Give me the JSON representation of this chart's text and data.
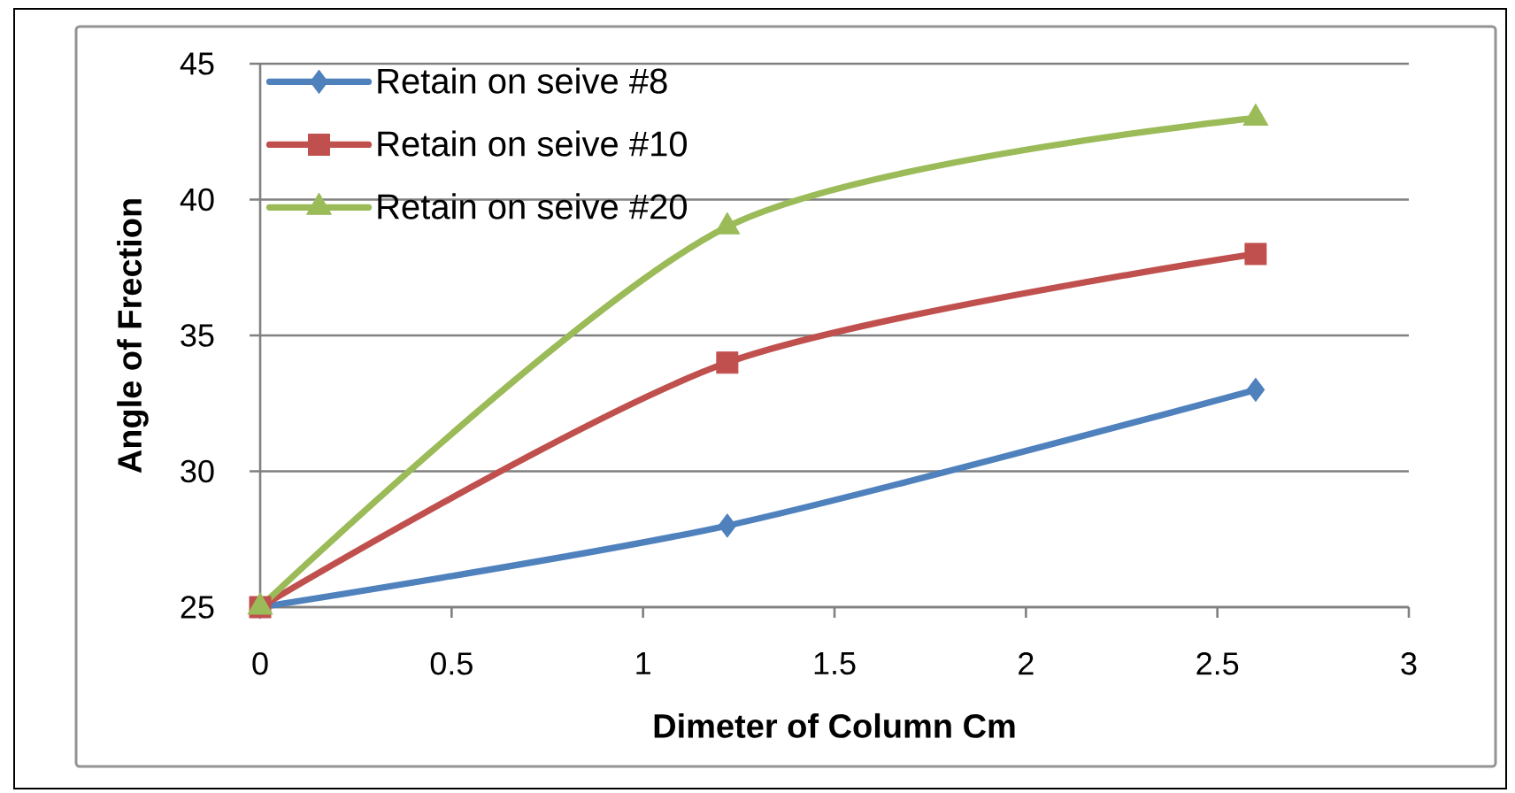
{
  "chart_data": {
    "type": "line",
    "xlabel": "Dimeter of Column Cm",
    "ylabel": "Angle of Frection",
    "x": [
      0,
      1.22,
      2.6
    ],
    "xlim": [
      0,
      3
    ],
    "xticks": [
      0,
      0.5,
      1,
      1.5,
      2,
      2.5,
      3
    ],
    "ylim": [
      25,
      45
    ],
    "yticks": [
      25,
      30,
      35,
      40,
      45
    ],
    "grid": "y",
    "legend": "top left",
    "line_style": "solid",
    "series": [
      {
        "name": "Retain on seive #8",
        "color": "#4f81bd",
        "marker": "diamond",
        "values": [
          25,
          28,
          33
        ]
      },
      {
        "name": "Retain on seive #10",
        "color": "#c0504d",
        "marker": "square",
        "values": [
          25,
          34,
          38
        ]
      },
      {
        "name": "Retain on seive #20",
        "color": "#9bbb59",
        "marker": "triangle",
        "values": [
          25,
          39,
          43
        ]
      }
    ]
  }
}
